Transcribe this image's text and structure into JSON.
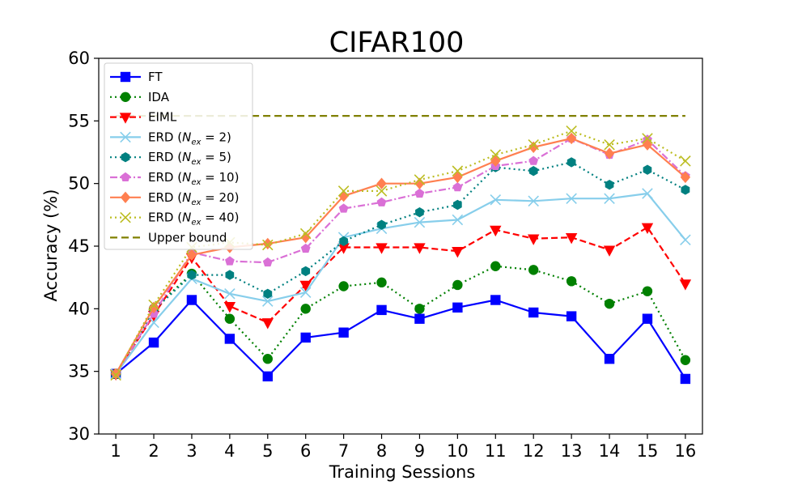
{
  "chart_data": {
    "type": "line",
    "title": "CIFAR100",
    "xlabel": "Training Sessions",
    "ylabel": "Accuracy (%)",
    "x": [
      1,
      2,
      3,
      4,
      5,
      6,
      7,
      8,
      9,
      10,
      11,
      12,
      13,
      14,
      15,
      16
    ],
    "xticks": [
      "1",
      "2",
      "3",
      "4",
      "5",
      "6",
      "7",
      "8",
      "9",
      "10",
      "11",
      "12",
      "13",
      "14",
      "15",
      "16"
    ],
    "ylim": [
      30,
      60
    ],
    "yticks": [
      "30",
      "35",
      "40",
      "45",
      "50",
      "55",
      "60"
    ],
    "grid": false,
    "legend_position": "top-left",
    "series": [
      {
        "name": "FT",
        "label_html": "FT",
        "color": "#0000ff",
        "dash": "",
        "marker": "square",
        "values": [
          34.8,
          37.3,
          40.7,
          37.6,
          34.6,
          37.7,
          38.1,
          39.9,
          39.2,
          40.1,
          40.7,
          39.7,
          39.4,
          36.0,
          39.2,
          34.4
        ]
      },
      {
        "name": "IDA",
        "label_html": "IDA",
        "color": "#008000",
        "dash": "2,4",
        "marker": "circle",
        "values": [
          34.8,
          40.0,
          42.8,
          39.2,
          36.0,
          40.0,
          41.8,
          42.1,
          40.0,
          41.9,
          43.4,
          43.1,
          42.2,
          40.4,
          41.4,
          35.9
        ]
      },
      {
        "name": "EIML",
        "label_html": "EIML",
        "color": "#ff0000",
        "dash": "8,4",
        "marker": "triangle-down",
        "values": [
          34.8,
          39.5,
          44.1,
          40.2,
          38.9,
          41.9,
          44.9,
          44.9,
          44.9,
          44.6,
          46.3,
          45.6,
          45.7,
          44.7,
          46.5,
          42.0
        ]
      },
      {
        "name": "ERD (N_ex = 2)",
        "label_html": "ERD (<tspan font-style='italic'>N<tspan font-size='10' dy='4'>ex</tspan></tspan><tspan dy='-4'> = 2)</tspan>",
        "color": "#87ceeb",
        "dash": "",
        "marker": "x",
        "values": [
          34.8,
          38.9,
          42.4,
          41.2,
          40.6,
          41.3,
          45.7,
          46.4,
          46.9,
          47.1,
          48.7,
          48.6,
          48.8,
          48.8,
          49.2,
          45.5
        ]
      },
      {
        "name": "ERD (N_ex = 5)",
        "label_html": "ERD (<tspan font-style='italic'>N<tspan font-size='10' dy='4'>ex</tspan></tspan><tspan dy='-4'> = 5)</tspan>",
        "color": "#008080",
        "dash": "2,4",
        "marker": "hexagon",
        "values": [
          34.8,
          39.9,
          42.7,
          42.7,
          41.2,
          43.0,
          45.4,
          46.7,
          47.7,
          48.3,
          51.3,
          51.0,
          51.7,
          49.9,
          51.1,
          49.5
        ]
      },
      {
        "name": "ERD (N_ex = 10)",
        "label_html": "ERD (<tspan font-style='italic'>N<tspan font-size='10' dy='4'>ex</tspan></tspan><tspan dy='-4'> = 10)</tspan>",
        "color": "#da70d6",
        "dash": "9,3,2,3",
        "marker": "pentagon",
        "values": [
          34.8,
          39.6,
          44.5,
          43.8,
          43.7,
          44.8,
          48.0,
          48.5,
          49.2,
          49.7,
          51.4,
          51.8,
          53.6,
          52.3,
          53.5,
          50.6
        ]
      },
      {
        "name": "ERD (N_ex = 20)",
        "label_html": "ERD (<tspan font-style='italic'>N<tspan font-size='10' dy='4'>ex</tspan></tspan><tspan dy='-4'> = 20)</tspan>",
        "color": "#ff7f50",
        "dash": "",
        "marker": "diamond",
        "values": [
          34.8,
          40.1,
          44.3,
          44.9,
          45.2,
          45.7,
          49.0,
          50.0,
          50.0,
          50.5,
          51.8,
          52.9,
          53.6,
          52.4,
          53.1,
          50.5
        ]
      },
      {
        "name": "ERD (N_ex = 40)",
        "label_html": "ERD (<tspan font-style='italic'>N<tspan font-size='10' dy='4'>ex</tspan></tspan><tspan dy='-4'> = 40)</tspan>",
        "color": "#bcbd22",
        "dash": "2,4",
        "marker": "x",
        "values": [
          34.7,
          40.3,
          44.9,
          45.3,
          45.1,
          46.0,
          49.4,
          49.4,
          50.3,
          51.0,
          52.3,
          53.1,
          54.2,
          53.1,
          53.6,
          51.8
        ]
      },
      {
        "name": "Upper bound",
        "label_html": "Upper bound",
        "color": "#808000",
        "dash": "9,5",
        "marker": "none",
        "values": [
          55.4,
          55.4,
          55.4,
          55.4,
          55.4,
          55.4,
          55.4,
          55.4,
          55.4,
          55.4,
          55.4,
          55.4,
          55.4,
          55.4,
          55.4,
          55.4
        ]
      }
    ]
  }
}
